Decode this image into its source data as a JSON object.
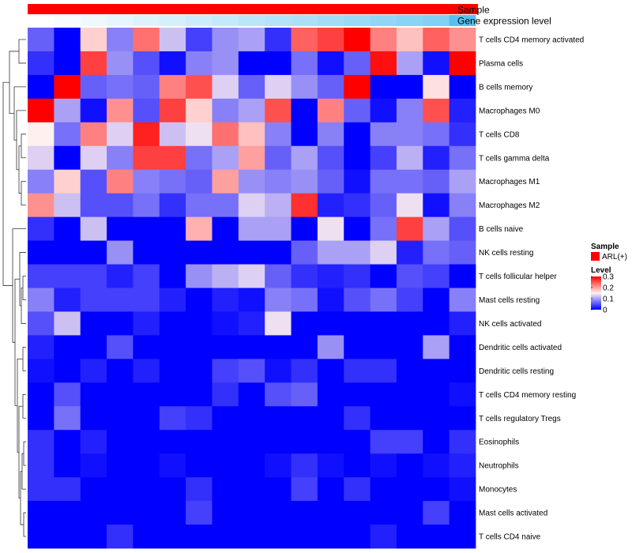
{
  "chart_data": {
    "type": "heatmap",
    "annotation_tracks": [
      {
        "label": "Sample",
        "color": "#ff0000"
      },
      {
        "label": "Gene expression level",
        "gradient_start": "#ffffff",
        "gradient_end": "#55c1f0"
      }
    ],
    "rows": [
      "T cells CD4 memory activated",
      "Plasma cells",
      "B cells memory",
      "Macrophages M0",
      "T cells CD8",
      "T cells gamma delta",
      "Macrophages M1",
      "Macrophages M2",
      "B cells naive",
      "NK cells resting",
      "T cells follicular helper",
      "Mast cells resting",
      "NK cells activated",
      "Dendritic cells activated",
      "Dendritic cells resting",
      "T cells CD4 memory resting",
      "T cells regulatory  Tregs",
      "Eosinophils",
      "Neutrophils",
      "Monocytes",
      "Mast cells activated",
      "T cells CD4 naive"
    ],
    "values": [
      [
        0.06,
        0.0,
        0.17,
        0.08,
        0.23,
        0.12,
        0.04,
        0.09,
        0.1,
        0.03,
        0.24,
        0.26,
        0.3,
        0.22,
        0.18,
        0.24,
        0.21
      ],
      [
        0.03,
        0.0,
        0.26,
        0.09,
        0.05,
        0.01,
        0.08,
        0.09,
        0.0,
        0.0,
        0.07,
        0.01,
        0.06,
        0.29,
        0.1,
        0.01,
        0.3
      ],
      [
        0.0,
        0.3,
        0.06,
        0.07,
        0.06,
        0.22,
        0.25,
        0.13,
        0.06,
        0.13,
        0.09,
        0.06,
        0.3,
        0.0,
        0.0,
        0.16,
        0.0
      ],
      [
        0.3,
        0.1,
        0.01,
        0.21,
        0.05,
        0.26,
        0.17,
        0.08,
        0.1,
        0.25,
        0.0,
        0.22,
        0.06,
        0.01,
        0.08,
        0.25,
        0.02
      ],
      [
        0.15,
        0.07,
        0.22,
        0.13,
        0.28,
        0.12,
        0.14,
        0.23,
        0.18,
        0.08,
        0.0,
        0.08,
        0.0,
        0.08,
        0.08,
        0.07,
        0.03
      ],
      [
        0.13,
        0.0,
        0.13,
        0.08,
        0.26,
        0.26,
        0.07,
        0.1,
        0.2,
        0.06,
        0.1,
        0.05,
        0.0,
        0.04,
        0.11,
        0.02,
        0.07
      ],
      [
        0.08,
        0.17,
        0.05,
        0.22,
        0.08,
        0.07,
        0.06,
        0.2,
        0.09,
        0.08,
        0.09,
        0.06,
        0.01,
        0.07,
        0.07,
        0.06,
        0.1
      ],
      [
        0.21,
        0.12,
        0.05,
        0.05,
        0.07,
        0.03,
        0.07,
        0.07,
        0.13,
        0.11,
        0.27,
        0.02,
        0.03,
        0.06,
        0.14,
        0.01,
        0.08
      ],
      [
        0.03,
        0.0,
        0.12,
        0.0,
        0.0,
        0.0,
        0.19,
        0.0,
        0.1,
        0.1,
        0.0,
        0.14,
        0.0,
        0.07,
        0.26,
        0.1,
        0.05
      ],
      [
        0.0,
        0.0,
        0.0,
        0.09,
        0.0,
        0.0,
        0.0,
        0.0,
        0.0,
        0.0,
        0.06,
        0.1,
        0.1,
        0.13,
        0.02,
        0.07,
        0.06
      ],
      [
        0.04,
        0.04,
        0.04,
        0.02,
        0.04,
        0.0,
        0.09,
        0.11,
        0.13,
        0.06,
        0.03,
        0.02,
        0.03,
        0.0,
        0.05,
        0.04,
        0.0
      ],
      [
        0.08,
        0.02,
        0.04,
        0.04,
        0.04,
        0.02,
        0.0,
        0.02,
        0.01,
        0.08,
        0.07,
        0.01,
        0.05,
        0.07,
        0.04,
        0.0,
        0.08
      ],
      [
        0.05,
        0.12,
        0.0,
        0.0,
        0.02,
        0.0,
        0.0,
        0.01,
        0.02,
        0.14,
        0.0,
        0.0,
        0.0,
        0.0,
        0.0,
        0.0,
        0.02
      ],
      [
        0.02,
        0.0,
        0.0,
        0.05,
        0.0,
        0.0,
        0.0,
        0.0,
        0.0,
        0.0,
        0.0,
        0.09,
        0.0,
        0.0,
        0.0,
        0.1,
        0.0
      ],
      [
        0.01,
        0.0,
        0.02,
        0.0,
        0.02,
        0.0,
        0.0,
        0.04,
        0.05,
        0.01,
        0.03,
        0.0,
        0.03,
        0.03,
        0.0,
        0.0,
        0.0
      ],
      [
        0.0,
        0.05,
        0.0,
        0.0,
        0.0,
        0.0,
        0.0,
        0.03,
        0.0,
        0.05,
        0.06,
        0.0,
        0.0,
        0.0,
        0.0,
        0.0,
        0.01
      ],
      [
        0.0,
        0.07,
        0.0,
        0.0,
        0.0,
        0.04,
        0.03,
        0.0,
        0.0,
        0.0,
        0.0,
        0.0,
        0.03,
        0.0,
        0.0,
        0.0,
        0.0
      ],
      [
        0.03,
        0.0,
        0.02,
        0.0,
        0.0,
        0.0,
        0.0,
        0.0,
        0.0,
        0.0,
        0.0,
        0.0,
        0.0,
        0.04,
        0.04,
        0.0,
        0.03
      ],
      [
        0.03,
        0.0,
        0.01,
        0.0,
        0.0,
        0.01,
        0.0,
        0.0,
        0.0,
        0.01,
        0.03,
        0.01,
        0.0,
        0.01,
        0.0,
        0.01,
        0.02
      ],
      [
        0.03,
        0.03,
        0.0,
        0.0,
        0.0,
        0.0,
        0.03,
        0.0,
        0.0,
        0.0,
        0.04,
        0.0,
        0.03,
        0.0,
        0.0,
        0.0,
        0.01
      ],
      [
        0.0,
        0.0,
        0.0,
        0.0,
        0.0,
        0.0,
        0.04,
        0.0,
        0.0,
        0.0,
        0.0,
        0.0,
        0.0,
        0.0,
        0.0,
        0.04,
        0.0
      ],
      [
        0.0,
        0.0,
        0.0,
        0.03,
        0.0,
        0.0,
        0.0,
        0.0,
        0.0,
        0.0,
        0.0,
        0.0,
        0.0,
        0.02,
        0.0,
        0.0,
        0.0
      ]
    ],
    "expression_level": [
      0.0,
      0.05,
      0.1,
      0.15,
      0.2,
      0.25,
      0.3,
      0.35,
      0.4,
      0.45,
      0.5,
      0.55,
      0.6,
      0.65,
      0.7,
      0.75,
      1.0
    ],
    "legend": {
      "sample_title": "Sample",
      "sample_label": "ARL(+)",
      "sample_color": "#ff0000",
      "level_title": "Level",
      "ticks": [
        0.3,
        0.2,
        0.1,
        0
      ],
      "tick_labels": [
        "0.3",
        "0.2",
        "0.1",
        "0"
      ],
      "scale_low": "#0000ff",
      "scale_mid": "#fff0f0",
      "scale_high": "#ff0000"
    },
    "value_range": [
      0,
      0.3
    ],
    "legend_position": "right"
  }
}
